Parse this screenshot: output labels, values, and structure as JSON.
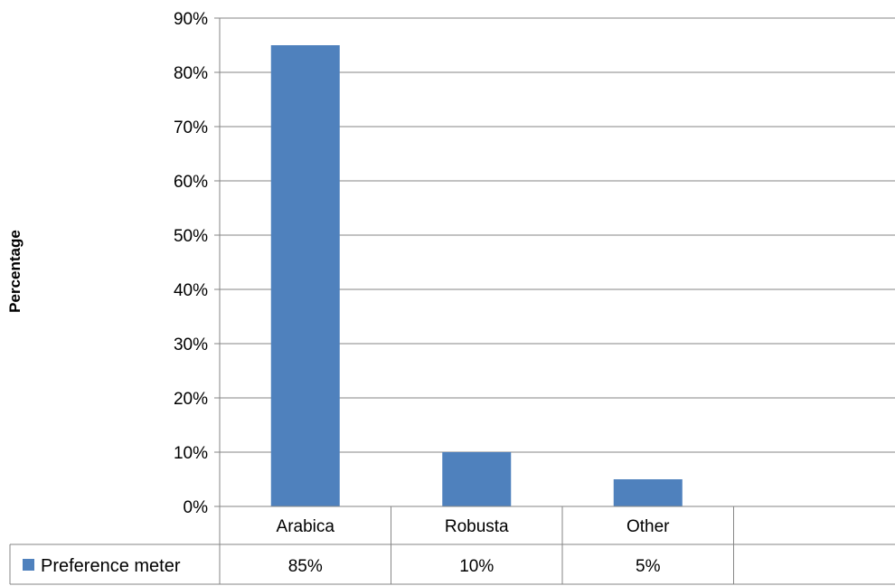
{
  "chart_data": {
    "type": "bar",
    "title": "",
    "xlabel": "",
    "ylabel": "Percentage",
    "categories": [
      "Arabica",
      "Robusta",
      "Other"
    ],
    "series": [
      {
        "name": "Preference meter",
        "values": [
          85,
          10,
          5
        ],
        "labels": [
          "85%",
          "10%",
          "5%"
        ],
        "color": "#4f81bd"
      }
    ],
    "ylim": [
      0,
      90
    ],
    "y_ticks": [
      0,
      10,
      20,
      30,
      40,
      50,
      60,
      70,
      80,
      90
    ],
    "y_tick_labels": [
      "0%",
      "10%",
      "20%",
      "30%",
      "40%",
      "50%",
      "60%",
      "70%",
      "80%",
      "90%"
    ],
    "y_unit": "%",
    "grid": true,
    "data_table": true,
    "legend_placement": "data-table-left"
  },
  "colors": {
    "bar": "#4f81bd",
    "grid": "#868686",
    "border": "#868686"
  }
}
